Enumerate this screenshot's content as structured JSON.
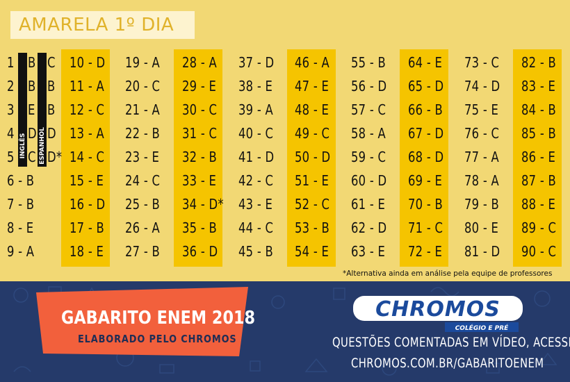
{
  "header": {
    "title": "AMARELA 1º DIA"
  },
  "colors": {
    "background": "#f2d874",
    "highlight_band": "#f5c400",
    "bottom_panel": "#253a6a",
    "banner": "#f2603c",
    "logo_blue": "#1b4a9c"
  },
  "language_labels": {
    "english": "INGLÊS",
    "spanish": "ESPANHOL"
  },
  "language_rows": [
    {
      "number": "1",
      "english": "B",
      "spanish": "C"
    },
    {
      "number": "2",
      "english": "B",
      "spanish": "B"
    },
    {
      "number": "3",
      "english": "E",
      "spanish": "B"
    },
    {
      "number": "4",
      "english": "D",
      "spanish": "D"
    },
    {
      "number": "5",
      "english": "C",
      "spanish": "D*"
    }
  ],
  "columns": [
    [
      "6 - B",
      "7 - B",
      "8 - E",
      "9 - A"
    ],
    [
      "10 - D",
      "11 - A",
      "12 - C",
      "13 - A",
      "14 - C",
      "15 - E",
      "16 - D",
      "17 - B",
      "18 - E"
    ],
    [
      "19 - A",
      "20 - C",
      "21 - A",
      "22 - B",
      "23 - E",
      "24 - C",
      "25 - B",
      "26 - A",
      "27 - B"
    ],
    [
      "28 - A",
      "29 - E",
      "30 - C",
      "31 - C",
      "32 - B",
      "33 - E",
      "34 - D*",
      "35 - B",
      "36 - D"
    ],
    [
      "37 - D",
      "38 - E",
      "39 - A",
      "40 - C",
      "41 - D",
      "42 - C",
      "43 - E",
      "44 - C",
      "45 - B"
    ],
    [
      "46 - A",
      "47 - E",
      "48 - E",
      "49 - C",
      "50 - D",
      "51 - E",
      "52 - C",
      "53 - B",
      "54 - E"
    ],
    [
      "55 - B",
      "56 - D",
      "57 - C",
      "58 - A",
      "59 - C",
      "60 - D",
      "61 - E",
      "62 - D",
      "63 - E"
    ],
    [
      "64 - E",
      "65 - D",
      "66 - B",
      "67 - D",
      "68 - D",
      "69 - E",
      "70 - B",
      "71 - C",
      "72 - E"
    ],
    [
      "73 - C",
      "74 - D",
      "75 - E",
      "76 - C",
      "77 - A",
      "78 - A",
      "79 - B",
      "80 - E",
      "81 - D"
    ],
    [
      "82 - B",
      "83 - E",
      "84 - B",
      "85 - B",
      "86 - E",
      "87 - B",
      "88 - E",
      "89 - C",
      "90 - C"
    ]
  ],
  "note": "*Alternativa ainda em análise pela equipe de professores",
  "banner": {
    "title": "GABARITO ENEM 2018",
    "subtitle": "ELABORADO PELO CHROMOS"
  },
  "logo": {
    "name": "CHROMOS",
    "tagline": "COLÉGIO E PRÉ"
  },
  "cta": {
    "line1": "QUESTÕES COMENTADAS EM VÍDEO, ACESSE:",
    "line2": "CHROMOS.COM.BR/GABARITOENEM"
  }
}
